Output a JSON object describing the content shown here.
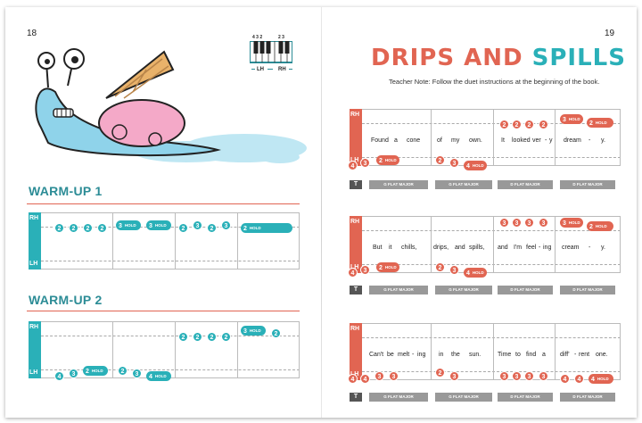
{
  "pages": {
    "left_number": "18",
    "right_number": "19"
  },
  "colors": {
    "teal": "#2ab0b8",
    "red": "#e16552",
    "heading": "#2c8c96"
  },
  "illustration": {
    "icon": "snail-with-ice-cream-cone-icon"
  },
  "hand_diagram": {
    "icon": "piano-keyboard-icon",
    "left_fingers": "4 3 2",
    "right_fingers": "2 3",
    "lh": "LH",
    "rh": "RH"
  },
  "title": {
    "word1": "DRIPS AND",
    "word2": "SPILLS"
  },
  "teacher_note": "Teacher Note: Follow the duet instructions at the beginning of the book.",
  "labels": {
    "rh": "RH",
    "lh": "LH",
    "t": "T",
    "hold": "HOLD"
  },
  "warmup1": {
    "heading": "WARM-UP 1"
  },
  "warmup2": {
    "heading": "WARM-UP 2"
  },
  "lines": [
    {
      "lyrics": [
        "Found",
        "a",
        "cone",
        "of",
        "my",
        "own.",
        "It",
        "looked",
        "ver",
        "-",
        "y",
        "dream",
        "-",
        "y."
      ],
      "chords": [
        "G FLAT MAJOR",
        "G FLAT MAJOR",
        "D FLAT MAJOR",
        "D FLAT MAJOR"
      ]
    },
    {
      "lyrics": [
        "But",
        "it",
        "chills,",
        "drips,",
        "and",
        "spills,",
        "and",
        "I'm",
        "feel",
        "-",
        "ing",
        "cream",
        "-",
        "y."
      ],
      "chords": [
        "G FLAT MAJOR",
        "G FLAT MAJOR",
        "D FLAT MAJOR",
        "D FLAT MAJOR"
      ]
    },
    {
      "lyrics": [
        "Can't",
        "be",
        "melt",
        "-",
        "ing",
        "in",
        "the",
        "sun.",
        "Time",
        "to",
        "find",
        "a",
        "diff'",
        "-",
        "rent",
        "one."
      ],
      "chords": [
        "G FLAT MAJOR",
        "G FLAT MAJOR",
        "D FLAT MAJOR",
        "D FLAT MAJOR"
      ]
    }
  ],
  "notes": {
    "w1_rh": [
      "2",
      "2",
      "2",
      "2",
      "3",
      "3",
      "2",
      "3",
      "2",
      "3",
      "2"
    ],
    "w2_rh": [
      "2",
      "2",
      "2",
      "2",
      "3",
      "2"
    ],
    "w2_lh": [
      "4",
      "3",
      "2",
      "2",
      "3",
      "4"
    ],
    "l1_rh": [
      "2",
      "2",
      "2",
      "2",
      "3",
      "2"
    ],
    "l1_lh": [
      "4",
      "3",
      "2",
      "2",
      "3",
      "4"
    ],
    "l2_rh": [
      "3",
      "3",
      "3",
      "3",
      "3",
      "2"
    ],
    "l2_lh": [
      "4",
      "3",
      "2",
      "2",
      "3",
      "4"
    ],
    "l3_rh": [],
    "l3_lh": [
      "4",
      "4",
      "3",
      "3",
      "2",
      "3",
      "3",
      "3",
      "3",
      "3",
      "4",
      "4",
      "4"
    ]
  }
}
